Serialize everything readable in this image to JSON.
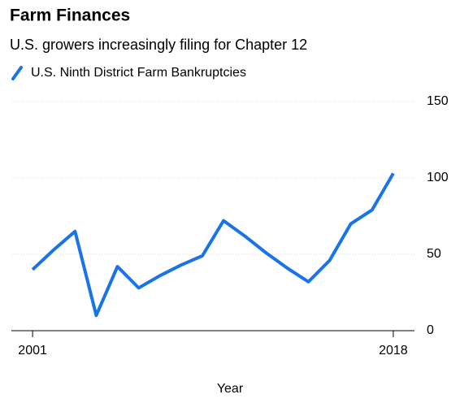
{
  "chart_data": {
    "type": "line",
    "title": "Farm Finances",
    "subtitle": "U.S. growers increasingly filing for Chapter 12",
    "x_label": "Year",
    "x": [
      2001,
      2002,
      2003,
      2004,
      2005,
      2006,
      2007,
      2008,
      2009,
      2010,
      2011,
      2012,
      2013,
      2014,
      2015,
      2016,
      2017,
      2018
    ],
    "series": [
      {
        "name": "U.S. Ninth District Farm Bankruptcies",
        "color": "#1a73e8",
        "values": [
          40,
          53,
          65,
          10,
          42,
          28,
          36,
          43,
          49,
          72,
          62,
          51,
          41,
          32,
          46,
          70,
          79,
          103
        ]
      }
    ],
    "xlim": [
      2000,
      2019
    ],
    "xticks": [
      2001,
      2018
    ],
    "ylim": [
      0,
      150
    ],
    "yticks": [
      0,
      50,
      100,
      150
    ],
    "grid": true,
    "legend": "top-left"
  }
}
